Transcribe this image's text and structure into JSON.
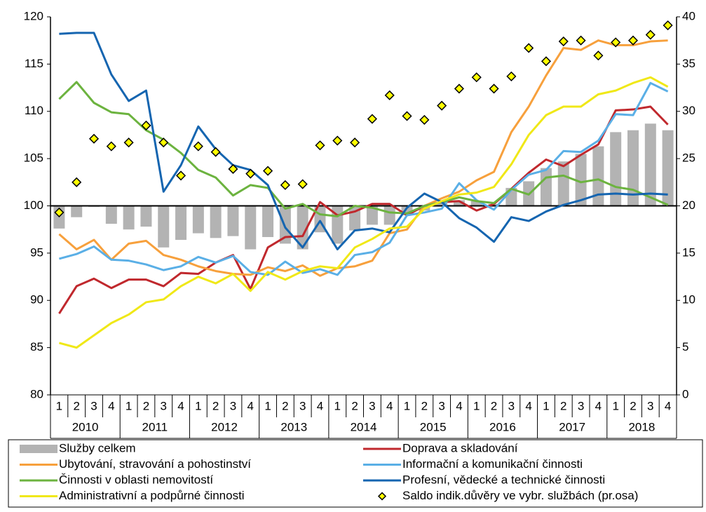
{
  "chart_data": {
    "type": "combo",
    "categories": [
      "1",
      "2",
      "3",
      "4",
      "1",
      "2",
      "3",
      "4",
      "1",
      "2",
      "3",
      "4",
      "1",
      "2",
      "3",
      "4",
      "1",
      "2",
      "3",
      "4",
      "1",
      "2",
      "3",
      "4",
      "1",
      "2",
      "3",
      "4",
      "1",
      "2",
      "3",
      "4",
      "1",
      "2",
      "3",
      "4"
    ],
    "years": [
      "2010",
      "2011",
      "2012",
      "2013",
      "2014",
      "2015",
      "2016",
      "2017",
      "2018"
    ],
    "ylim": [
      80,
      120
    ],
    "yticks": [
      80,
      85,
      90,
      95,
      100,
      105,
      110,
      115,
      120
    ],
    "y2lim": [
      0,
      40
    ],
    "y2ticks": [
      0,
      5,
      10,
      15,
      20,
      25,
      30,
      35,
      40
    ],
    "x_axis_at": 100,
    "series": [
      {
        "name": "Služby celkem",
        "type": "bar",
        "color": "#b3b3b3",
        "values": [
          97.6,
          98.8,
          99.9,
          98.1,
          97.5,
          97.8,
          95.6,
          96.4,
          97.1,
          96.6,
          96.8,
          95.4,
          96.7,
          96.0,
          95.4,
          97.2,
          96.0,
          97.4,
          98.0,
          98.0,
          99.0,
          99.5,
          100.3,
          100.6,
          100.5,
          100.2,
          101.9,
          102.6,
          104.0,
          104.7,
          105.5,
          106.3,
          107.8,
          108.0,
          108.7,
          108.0
        ]
      },
      {
        "name": "Doprava a skladování",
        "type": "line",
        "color": "#c0282d",
        "values": [
          88.6,
          91.5,
          92.3,
          91.3,
          92.2,
          92.2,
          91.5,
          92.9,
          92.8,
          94.0,
          94.8,
          91.2,
          95.6,
          96.7,
          96.8,
          100.4,
          99.0,
          99.4,
          100.2,
          100.2,
          99.0,
          100.0,
          100.4,
          100.5,
          99.5,
          100.2,
          101.8,
          103.5,
          104.9,
          104.2,
          105.4,
          106.5,
          110.1,
          110.2,
          110.5,
          108.6
        ]
      },
      {
        "name": "Ubytování, stravování a pohostinství",
        "type": "line",
        "color": "#f7a03c",
        "values": [
          97.0,
          95.4,
          96.4,
          94.3,
          96.0,
          96.3,
          94.8,
          94.3,
          93.6,
          93.1,
          92.8,
          92.7,
          93.5,
          93.1,
          93.7,
          92.6,
          93.4,
          93.6,
          94.2,
          97.1,
          97.5,
          100.0,
          100.8,
          101.5,
          102.7,
          103.6,
          107.8,
          110.5,
          113.8,
          116.7,
          116.5,
          117.5,
          117.0,
          117.0,
          117.4,
          117.5
        ]
      },
      {
        "name": "Informační a komunikační činnosti",
        "type": "line",
        "color": "#5aafe6",
        "values": [
          94.4,
          94.9,
          95.7,
          94.3,
          94.2,
          93.8,
          93.2,
          93.6,
          94.6,
          94.0,
          94.7,
          93.0,
          92.7,
          94.1,
          92.9,
          93.3,
          92.7,
          94.8,
          95.1,
          96.1,
          99.0,
          99.3,
          99.7,
          102.4,
          100.6,
          99.6,
          101.7,
          103.3,
          103.8,
          105.8,
          105.7,
          106.9,
          109.7,
          109.6,
          113.0,
          112.1
        ]
      },
      {
        "name": "Činnosti v oblasti nemovitostí",
        "type": "line",
        "color": "#6cb33f",
        "values": [
          111.3,
          113.1,
          110.9,
          109.9,
          109.7,
          108.0,
          107.0,
          105.6,
          103.8,
          103.0,
          101.1,
          102.2,
          101.9,
          99.7,
          100.2,
          99.1,
          98.9,
          100.0,
          99.8,
          99.3,
          99.2,
          100.0,
          100.4,
          100.9,
          100.5,
          100.3,
          101.8,
          101.2,
          103.0,
          103.2,
          102.5,
          102.8,
          102.0,
          101.7,
          100.9,
          100.1
        ]
      },
      {
        "name": "Profesní, vědecké a technické činnosti",
        "type": "line",
        "color": "#1565b0",
        "values": [
          118.2,
          118.3,
          118.3,
          113.9,
          111.1,
          112.2,
          101.5,
          104.3,
          108.4,
          106.0,
          104.3,
          103.8,
          102.2,
          97.7,
          95.6,
          98.4,
          95.4,
          97.4,
          97.6,
          97.2,
          99.8,
          101.3,
          100.4,
          98.7,
          97.7,
          96.2,
          98.8,
          98.4,
          99.4,
          100.1,
          100.6,
          101.2,
          101.3,
          101.2,
          101.3,
          101.2
        ]
      },
      {
        "name": "Administrativní a podpůrné činnosti",
        "type": "line",
        "color": "#f0e817",
        "values": [
          85.5,
          85.0,
          86.3,
          87.6,
          88.5,
          89.8,
          90.1,
          91.5,
          92.5,
          91.8,
          92.8,
          91.0,
          93.0,
          92.2,
          93.1,
          93.6,
          93.4,
          95.6,
          96.5,
          97.6,
          97.8,
          99.7,
          100.5,
          101.2,
          101.4,
          102.0,
          104.4,
          107.5,
          109.6,
          110.5,
          110.5,
          111.8,
          112.2,
          113.0,
          113.6,
          112.6
        ]
      },
      {
        "name": "Saldo indik.důvěry ve vybr. službách (pr.osa)",
        "type": "marker",
        "axis": "y2",
        "color": "#ffff00",
        "values": [
          19.3,
          22.5,
          27.1,
          26.3,
          26.7,
          28.5,
          26.7,
          23.2,
          26.3,
          25.7,
          23.9,
          23.4,
          23.7,
          22.2,
          22.3,
          26.4,
          26.9,
          26.7,
          29.2,
          31.7,
          29.5,
          29.1,
          30.6,
          32.4,
          33.6,
          32.4,
          33.7,
          36.7,
          35.3,
          37.4,
          37.5,
          35.9,
          37.3,
          37.5,
          38.1,
          39.1
        ]
      }
    ]
  }
}
